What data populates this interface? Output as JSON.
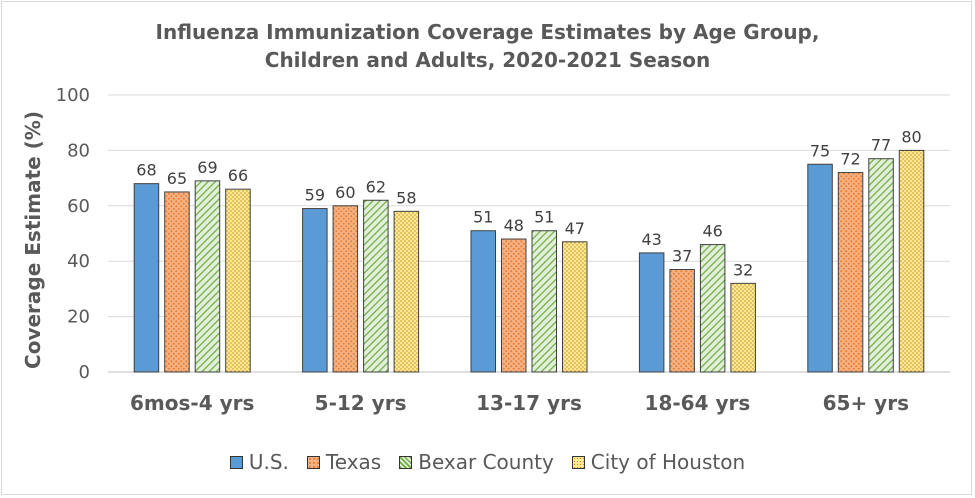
{
  "chart_data": {
    "type": "bar",
    "title_line1": "Influenza Immunization Coverage Estimates by Age Group,",
    "title_line2": "Children and Adults, 2020-2021 Season",
    "ylabel": "Coverage Estimate (%)",
    "xlabel": "",
    "ylim": [
      0,
      100
    ],
    "yticks": [
      0,
      20,
      40,
      60,
      80,
      100
    ],
    "categories": [
      "6mos-4 yrs",
      "5-12 yrs",
      "13-17 yrs",
      "18-64 yrs",
      "65+ yrs"
    ],
    "series": [
      {
        "name": "U.S.",
        "values": [
          68,
          59,
          51,
          43,
          75
        ],
        "color": "#5b9bd5",
        "pattern": "solid"
      },
      {
        "name": "Texas",
        "values": [
          65,
          60,
          48,
          37,
          72
        ],
        "color": "#ed7d31",
        "pattern": "dots"
      },
      {
        "name": "Bexar County",
        "values": [
          69,
          62,
          51,
          46,
          77
        ],
        "color": "#70ad47",
        "pattern": "diagonal"
      },
      {
        "name": "City of Houston",
        "values": [
          66,
          58,
          47,
          32,
          80
        ],
        "color": "#ffd966",
        "pattern": "fine-dots"
      }
    ],
    "grid": true,
    "legend_position": "bottom"
  }
}
